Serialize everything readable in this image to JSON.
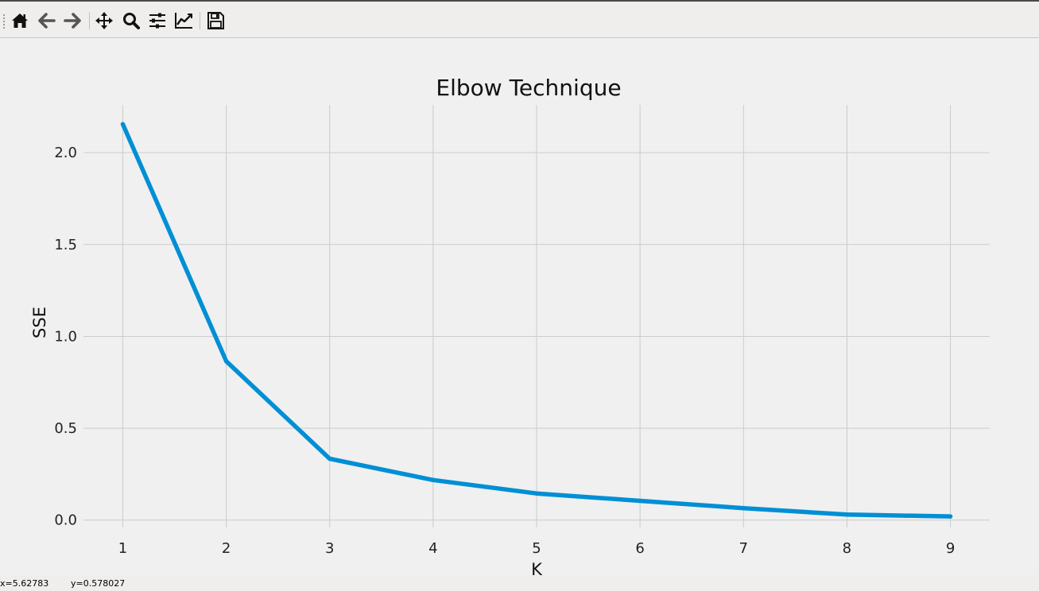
{
  "toolbar": {
    "buttons": [
      {
        "name": "home-icon",
        "label": "Home"
      },
      {
        "name": "back-arrow-icon",
        "label": "Back"
      },
      {
        "name": "forward-arrow-icon",
        "label": "Forward"
      },
      {
        "name": "pan-move-icon",
        "label": "Pan"
      },
      {
        "name": "zoom-magnifier-icon",
        "label": "Zoom"
      },
      {
        "name": "configure-subplots-icon",
        "label": "Subplots"
      },
      {
        "name": "edit-axes-icon",
        "label": "Customize"
      },
      {
        "name": "save-floppy-icon",
        "label": "Save"
      }
    ]
  },
  "status": {
    "x_readout": "x=5.62783",
    "y_readout": "y=0.578027"
  },
  "colors": {
    "line": "#008fd5",
    "grid": "#cbcbcb",
    "background": "#f0f0f0",
    "icon": "#111111"
  },
  "chart_data": {
    "type": "line",
    "title": "Elbow Technique",
    "xlabel": "K",
    "ylabel": "SSE",
    "x": [
      1,
      2,
      3,
      4,
      5,
      6,
      7,
      8,
      9
    ],
    "series": [
      {
        "values": [
          2.155,
          0.865,
          0.334,
          0.218,
          0.145,
          0.105,
          0.065,
          0.03,
          0.02
        ]
      }
    ],
    "xlim": [
      0.62,
      9.38
    ],
    "ylim": [
      -0.04,
      2.26
    ],
    "xticks": [
      "1",
      "2",
      "3",
      "4",
      "5",
      "6",
      "7",
      "8",
      "9"
    ],
    "yticks": [
      "0.0",
      "0.5",
      "1.0",
      "1.5",
      "2.0"
    ],
    "grid": true,
    "legend": "none"
  }
}
